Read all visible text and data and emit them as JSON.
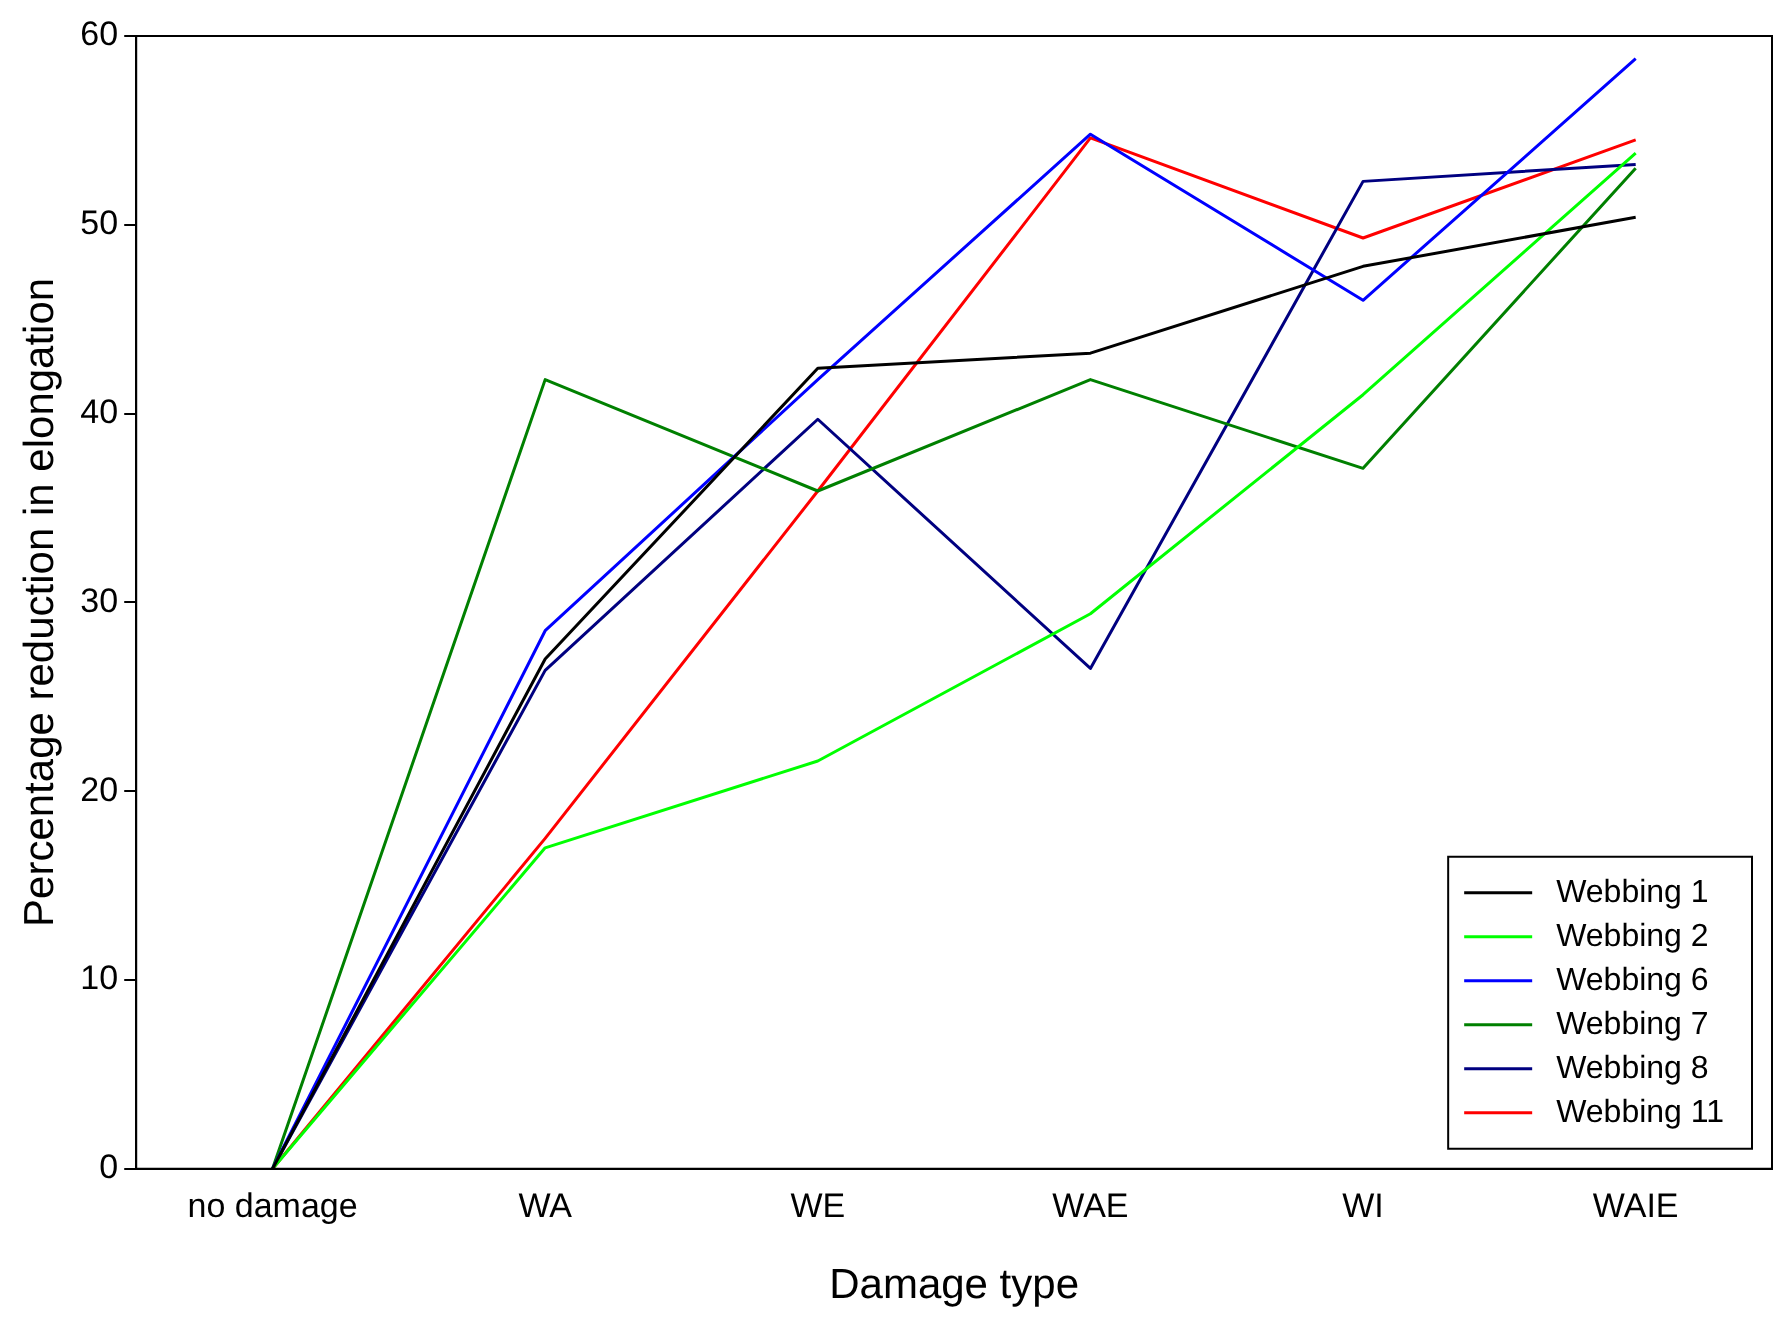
{
  "chart_data": {
    "type": "line",
    "xlabel": "Damage type",
    "ylabel": "Percentage reduction in elongation",
    "categories": [
      "no damage",
      "WA",
      "WE",
      "WAE",
      "WI",
      "WAIE"
    ],
    "ylim": [
      0,
      60
    ],
    "yticks": [
      0,
      10,
      20,
      30,
      40,
      50,
      60
    ],
    "grid": false,
    "legend": "bottom right",
    "marker": "none",
    "series": [
      {
        "name": "Webbing 1",
        "color": "#000000",
        "values": [
          0,
          27.0,
          42.4,
          43.2,
          47.8,
          50.4
        ]
      },
      {
        "name": "Webbing 2",
        "color": "#00ff00",
        "values": [
          0,
          17.0,
          21.6,
          29.4,
          41.0,
          53.8
        ]
      },
      {
        "name": "Webbing 6",
        "color": "#0000ff",
        "values": [
          0,
          28.5,
          41.8,
          54.8,
          46.0,
          58.8
        ]
      },
      {
        "name": "Webbing 7",
        "color": "#008000",
        "values": [
          0,
          41.8,
          35.9,
          41.8,
          37.1,
          53.0
        ]
      },
      {
        "name": "Webbing 8",
        "color": "#000080",
        "values": [
          0,
          26.4,
          39.7,
          26.5,
          52.3,
          53.2
        ]
      },
      {
        "name": "Webbing 11",
        "color": "#ff0000",
        "values": [
          0,
          17.5,
          35.9,
          54.6,
          49.3,
          54.5
        ]
      }
    ]
  }
}
